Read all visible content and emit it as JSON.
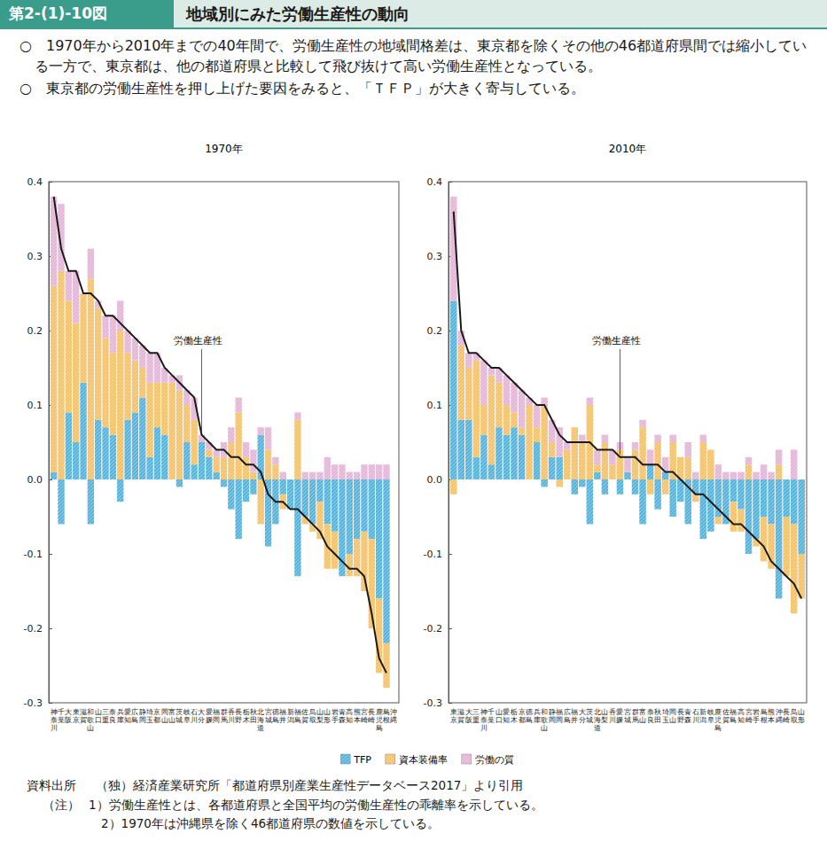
{
  "page": {
    "header_label": "第2-(1)-10図",
    "header_title": "地域別にみた労働生産性の動向",
    "bullets": [
      "○　1970年から2010年までの40年間で、労働生産性の地域間格差は、東京都を除くその他の46都道府県間では縮小している一方で、東京都は、他の都道府県と比較して飛び抜けて高い労働生産性となっている。",
      "○　東京都の労働生産性を押し上げた要因をみると、「ＴＦＰ」が大きく寄与している。"
    ],
    "source_label": "資料出所",
    "source": "（独）経済産業研究所「都道府県別産業生産性データベース2017」より引用",
    "notes_label": "（注）",
    "notes": [
      "1）労働生産性とは、各都道府県と全国平均の労働生産性の乖離率を示している。",
      "2）1970年は沖縄県を除く46都道府県の数値を示している。"
    ]
  },
  "chart_data": [
    {
      "type": "bar",
      "stacked": true,
      "legend": "bottom",
      "title": "1970年",
      "categories": [
        "神奈川",
        "千葉",
        "大阪",
        "東京",
        "滋賀",
        "和歌山",
        "山口",
        "三重",
        "奈良",
        "兵庫",
        "愛知",
        "広島",
        "静岡",
        "埼玉",
        "京都",
        "岡山",
        "富山",
        "茨城",
        "岐阜",
        "石川",
        "大分",
        "愛媛",
        "福岡",
        "群馬",
        "香川",
        "長野",
        "栃木",
        "秋田",
        "北海道",
        "宮城",
        "徳島",
        "福井",
        "新潟",
        "福島",
        "佐賀",
        "鳥取",
        "山梨",
        "山形",
        "岩手",
        "青森",
        "高知",
        "熊本",
        "宮崎",
        "長崎",
        "鹿児島",
        "島根",
        "沖縄"
      ],
      "series": [
        {
          "name": "TFP",
          "color": "#5ab5dd",
          "values": [
            0.01,
            -0.06,
            0.09,
            0.05,
            0.13,
            -0.06,
            0.08,
            0.07,
            0.06,
            -0.03,
            0.08,
            0.09,
            0.11,
            0.03,
            0.07,
            0.06,
            0.0,
            -0.01,
            0.05,
            0.02,
            0.05,
            0.03,
            0.01,
            -0.01,
            -0.04,
            -0.08,
            -0.03,
            -0.02,
            0.06,
            -0.09,
            -0.06,
            -0.02,
            -0.04,
            -0.13,
            -0.05,
            -0.06,
            -0.03,
            -0.06,
            -0.07,
            -0.13,
            -0.1,
            -0.08,
            -0.07,
            -0.08,
            -0.16,
            -0.22,
            null
          ]
        },
        {
          "name": "資本装備率",
          "color": "#f5c36c",
          "values": [
            0.25,
            0.28,
            0.15,
            0.16,
            0.12,
            0.27,
            0.15,
            0.12,
            0.11,
            0.2,
            0.09,
            0.07,
            0.04,
            0.1,
            0.06,
            0.07,
            0.13,
            0.12,
            0.05,
            0.06,
            0.0,
            0.01,
            0.02,
            0.03,
            0.05,
            0.09,
            0.03,
            0.01,
            -0.06,
            0.04,
            0.02,
            -0.02,
            0.0,
            0.08,
            -0.01,
            -0.01,
            -0.05,
            -0.06,
            -0.05,
            0.0,
            -0.03,
            -0.05,
            -0.08,
            -0.12,
            -0.1,
            -0.06,
            null
          ]
        },
        {
          "name": "労働の質",
          "color": "#e4b6d7",
          "values": [
            0.12,
            0.09,
            0.04,
            0.07,
            0.0,
            0.04,
            0.01,
            0.03,
            0.05,
            0.04,
            0.03,
            0.03,
            0.03,
            0.04,
            0.04,
            0.02,
            0.01,
            0.02,
            0.02,
            0.03,
            0.01,
            0.01,
            0.01,
            0.02,
            0.02,
            0.02,
            0.02,
            0.03,
            0.01,
            0.03,
            0.01,
            0.01,
            0.0,
            0.01,
            0.01,
            0.01,
            0.01,
            0.03,
            0.02,
            0.02,
            0.01,
            0.01,
            0.02,
            0.02,
            0.02,
            0.02,
            null
          ]
        },
        {
          "name": "労働生産性",
          "type": "line",
          "color": "#1a1a1a",
          "values": [
            0.38,
            0.31,
            0.28,
            0.28,
            0.25,
            0.25,
            0.24,
            0.22,
            0.22,
            0.21,
            0.2,
            0.19,
            0.18,
            0.17,
            0.17,
            0.15,
            0.14,
            0.13,
            0.12,
            0.11,
            0.06,
            0.05,
            0.04,
            0.04,
            0.03,
            0.03,
            0.02,
            0.02,
            0.01,
            -0.02,
            -0.03,
            -0.03,
            -0.04,
            -0.04,
            -0.05,
            -0.06,
            -0.07,
            -0.09,
            -0.1,
            -0.11,
            -0.12,
            -0.12,
            -0.13,
            -0.18,
            -0.24,
            -0.26,
            null
          ]
        }
      ],
      "ylim": [
        -0.3,
        0.4
      ],
      "yticks": [
        -0.3,
        -0.2,
        -0.1,
        {
          "value": 0,
          "label": "0.0"
        },
        0.1,
        0.2,
        0.3,
        0.4
      ]
    },
    {
      "type": "bar",
      "stacked": true,
      "title": "2010年",
      "categories": [
        "東京",
        "滋賀",
        "大阪",
        "三重",
        "神奈川",
        "千葉",
        "山口",
        "愛知",
        "栃木",
        "京都",
        "徳島",
        "兵庫",
        "和歌山",
        "静岡",
        "福岡",
        "広島",
        "福井",
        "大分",
        "茨城",
        "北海道",
        "山梨",
        "香川",
        "愛媛",
        "宮城",
        "群馬",
        "富山",
        "奈良",
        "秋田",
        "埼玉",
        "岡山",
        "長野",
        "青森",
        "石川",
        "新潟",
        "岐阜",
        "鹿児島",
        "佐賀",
        "福島",
        "高知",
        "宮崎",
        "岩手",
        "島根",
        "熊本",
        "沖縄",
        "長崎",
        "鳥取",
        "山形"
      ],
      "series": [
        {
          "color": "#5ab5dd",
          "values": [
            0.24,
            0.08,
            0.08,
            0.03,
            0.06,
            0.02,
            0.07,
            0.06,
            0.07,
            0.06,
            0.0,
            0.05,
            -0.01,
            0.03,
            0.03,
            0.0,
            -0.02,
            -0.01,
            -0.06,
            0.01,
            -0.02,
            0.0,
            -0.02,
            0.01,
            -0.02,
            -0.06,
            0.02,
            -0.04,
            0.01,
            -0.05,
            -0.03,
            -0.06,
            -0.02,
            -0.08,
            -0.07,
            -0.05,
            -0.06,
            -0.03,
            -0.04,
            -0.1,
            -0.08,
            -0.05,
            -0.06,
            -0.16,
            -0.05,
            -0.06,
            -0.1
          ]
        },
        {
          "color": "#f5c36c",
          "values": [
            -0.02,
            0.1,
            0.07,
            0.13,
            0.04,
            0.12,
            0.06,
            0.04,
            0.02,
            0.01,
            0.1,
            0.02,
            0.1,
            0.02,
            -0.01,
            0.04,
            0.07,
            0.05,
            0.1,
            0.01,
            0.05,
            0.02,
            0.04,
            0.0,
            0.04,
            0.07,
            -0.02,
            0.05,
            -0.02,
            0.05,
            0.03,
            0.03,
            -0.01,
            0.05,
            0.04,
            -0.01,
            0.0,
            -0.04,
            -0.03,
            0.02,
            -0.01,
            -0.06,
            -0.06,
            0.02,
            -0.08,
            -0.12,
            -0.06
          ]
        },
        {
          "color": "#e4b6d7",
          "values": [
            0.14,
            0.02,
            0.02,
            0.01,
            0.06,
            0.01,
            0.02,
            0.04,
            0.04,
            0.05,
            0.01,
            0.03,
            0.01,
            0.03,
            0.04,
            0.01,
            0.0,
            0.01,
            0.01,
            0.02,
            0.01,
            0.02,
            0.01,
            0.02,
            0.01,
            0.01,
            0.02,
            0.01,
            0.02,
            0.01,
            0.0,
            0.02,
            0.01,
            0.01,
            0.0,
            0.02,
            0.01,
            0.01,
            0.01,
            0.01,
            0.01,
            0.02,
            0.01,
            0.02,
            0.0,
            0.04,
            0.0
          ]
        },
        {
          "name": "労働生産性",
          "type": "line",
          "color": "#1a1a1a",
          "values": [
            0.36,
            0.2,
            0.17,
            0.17,
            0.16,
            0.15,
            0.15,
            0.14,
            0.13,
            0.12,
            0.11,
            0.1,
            0.1,
            0.08,
            0.06,
            0.05,
            0.05,
            0.05,
            0.05,
            0.04,
            0.04,
            0.04,
            0.03,
            0.03,
            0.03,
            0.02,
            0.02,
            0.02,
            0.01,
            0.01,
            0.0,
            -0.01,
            -0.02,
            -0.02,
            -0.03,
            -0.04,
            -0.05,
            -0.06,
            -0.06,
            -0.07,
            -0.08,
            -0.09,
            -0.11,
            -0.12,
            -0.13,
            -0.14,
            -0.16
          ]
        }
      ],
      "ylim": [
        -0.3,
        0.4
      ],
      "yticks": [
        -0.3,
        -0.2,
        -0.1,
        {
          "value": 0,
          "label": "0.0"
        },
        0.1,
        0.2,
        0.3,
        0.4
      ]
    }
  ]
}
